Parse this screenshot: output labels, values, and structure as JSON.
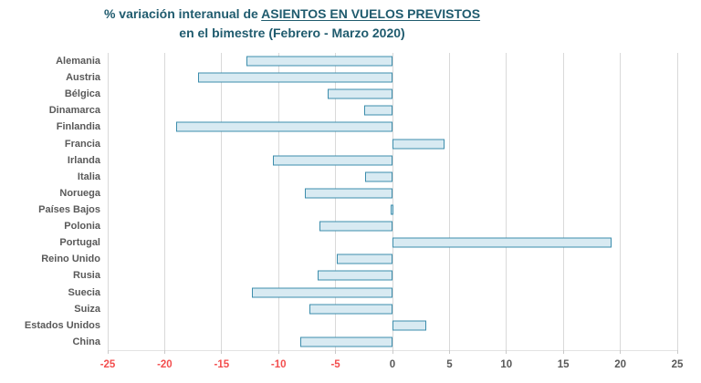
{
  "title": {
    "prefix": "% variación interanual de ",
    "underlined": "ASIENTOS EN VUELOS PREVISTOS",
    "line2": "en el bimestre (Febrero - Marzo 2020)"
  },
  "chart_data": {
    "type": "bar",
    "orientation": "horizontal",
    "title": "% variación interanual de ASIENTOS EN VUELOS PREVISTOS en el bimestre (Febrero - Marzo 2020)",
    "categories": [
      "Alemania",
      "Austria",
      "Bélgica",
      "Dinamarca",
      "Finlandia",
      "Francia",
      "Irlanda",
      "Italia",
      "Noruega",
      "Países Bajos",
      "Polonia",
      "Portugal",
      "Reino Unido",
      "Rusia",
      "Suecia",
      "Suiza",
      "Estados Unidos",
      "China"
    ],
    "values": [
      -12.8,
      -17.1,
      -5.7,
      -2.5,
      -19.0,
      4.5,
      -10.5,
      -2.4,
      -7.7,
      -0.2,
      -6.4,
      19.2,
      -4.9,
      -6.6,
      -12.3,
      -7.3,
      2.9,
      -8.1
    ],
    "xlim": [
      -25,
      25
    ],
    "xticks": [
      -25,
      -20,
      -15,
      -10,
      -5,
      0,
      5,
      10,
      15,
      20,
      25
    ],
    "grid": true,
    "legend": false,
    "colors": {
      "bar_fill": "#D8EAF2",
      "bar_border": "#3C8DAC",
      "gridline": "#D9D9D9",
      "tick_negative": "#F34E4E",
      "tick_positive": "#595959",
      "category_label": "#595959",
      "title": "#1F5B6E"
    }
  }
}
